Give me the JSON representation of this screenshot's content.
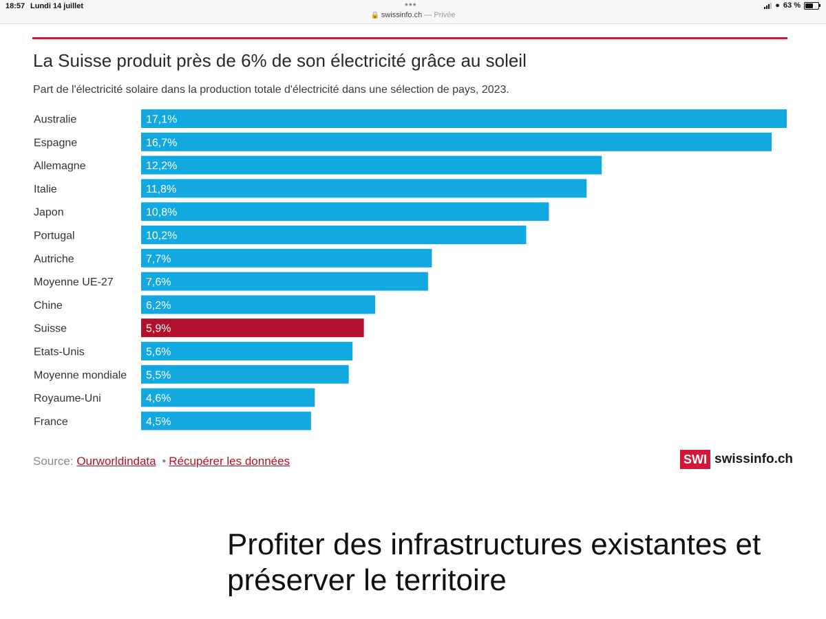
{
  "status_bar": {
    "time": "18:57",
    "date": "Lundi 14 juillet",
    "tab_dots": "•••",
    "url": "swissinfo.ch",
    "private_label": "— Privée",
    "battery": "63 %",
    "battery_level": 0.63,
    "icons": [
      "signal-icon",
      "wifi-icon",
      "battery-icon",
      "lock-icon"
    ]
  },
  "chart": {
    "title": "La Suisse produit près de 6% de son électricité grâce au soleil",
    "subtitle": "Part de l'électricité solaire dans la production totale d'électricité dans une sélection de pays, 2023.",
    "source_label": "Source:",
    "source_link": "Ourworldindata",
    "separator": "•",
    "data_link": "Récupérer les données",
    "brand_box": "SWI",
    "brand_name": "swissinfo.ch"
  },
  "chart_data": {
    "type": "bar",
    "orientation": "horizontal",
    "title": "La Suisse produit près de 6% de son électricité grâce au soleil",
    "subtitle": "Part de l'électricité solaire dans la production totale d'électricité dans une sélection de pays, 2023.",
    "categories": [
      "Australie",
      "Espagne",
      "Allemagne",
      "Italie",
      "Japon",
      "Portugal",
      "Autriche",
      "Moyenne UE-27",
      "Chine",
      "Suisse",
      "Etats-Unis",
      "Moyenne mondiale",
      "Royaume-Uni",
      "France"
    ],
    "values": [
      17.1,
      16.7,
      12.2,
      11.8,
      10.8,
      10.2,
      7.7,
      7.6,
      6.2,
      5.9,
      5.6,
      5.5,
      4.6,
      4.5
    ],
    "labels": [
      "17,1%",
      "16,7%",
      "12,2%",
      "11,8%",
      "10,8%",
      "10,2%",
      "7,7%",
      "7,6%",
      "6,2%",
      "5,9%",
      "5,6%",
      "5,5%",
      "4,6%",
      "4,5%"
    ],
    "highlight": "Suisse",
    "colors": {
      "default": "#12a8e0",
      "highlight": "#b0102a"
    },
    "xlim": [
      0,
      17.1
    ],
    "grid": false,
    "legend": "none"
  },
  "article": {
    "headline": "Profiter des infrastructures existantes et préserver le territoire"
  }
}
